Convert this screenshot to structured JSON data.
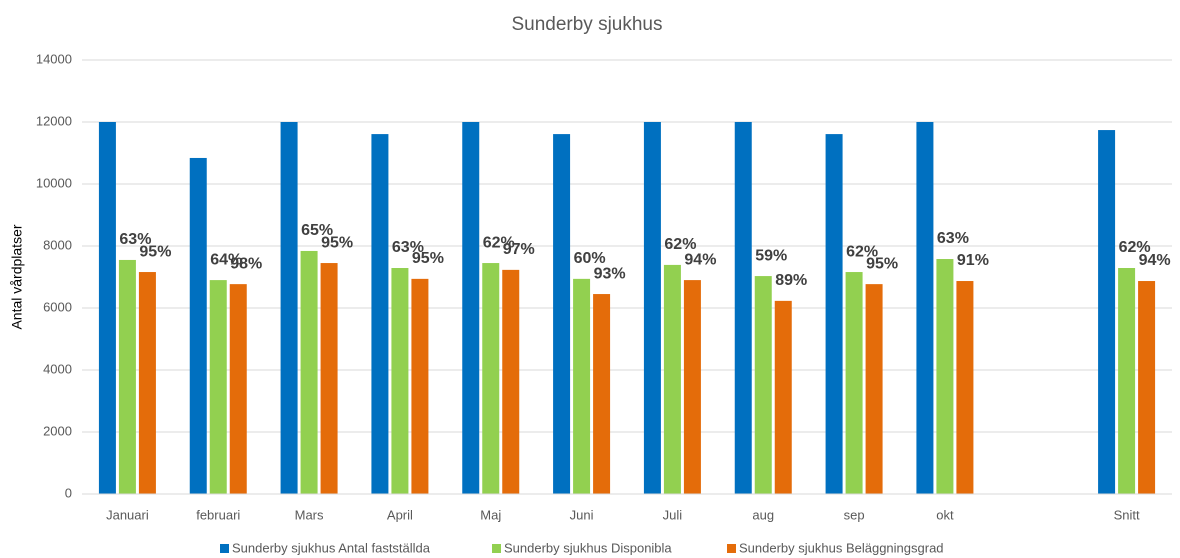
{
  "chart_data": {
    "type": "bar",
    "title": "Sunderby sjukhus",
    "y_label": "Antal vårdplatser",
    "categories": [
      "Januari",
      "februari",
      "Mars",
      "April",
      "Maj",
      "Juni",
      "Juli",
      "aug",
      "sep",
      "okt",
      null,
      "Snitt"
    ],
    "series": [
      {
        "name": "Sunderby sjukhus Antal fastställda",
        "color": "#0070c0",
        "values": [
          12000,
          10840,
          12000,
          11610,
          12000,
          11610,
          12000,
          12000,
          11610,
          12000,
          null,
          11740
        ]
      },
      {
        "name": "Sunderby sjukhus Disponibla",
        "color": "#92d050",
        "values": [
          7550,
          6900,
          7840,
          7290,
          7450,
          6940,
          7390,
          7030,
          7160,
          7580,
          null,
          7290
        ],
        "annotations": [
          "63%",
          "64%",
          "65%",
          "63%",
          "62%",
          "60%",
          "62%",
          "59%",
          "62%",
          "63%",
          null,
          "62%"
        ]
      },
      {
        "name": "Sunderby sjukhus Beläggningsgrad",
        "color": "#e46c0a",
        "values": [
          7160,
          6770,
          7450,
          6940,
          7230,
          6450,
          6900,
          6230,
          6770,
          6870,
          null,
          6870
        ],
        "annotations": [
          "95%",
          "98%",
          "95%",
          "95%",
          "97%",
          "93%",
          "94%",
          "89%",
          "95%",
          "91%",
          null,
          "94%"
        ]
      }
    ],
    "ylim": [
      0,
      14000
    ],
    "yticks": [
      0,
      2000,
      4000,
      6000,
      8000,
      10000,
      12000,
      14000
    ],
    "grid": true,
    "legend": "bottom"
  }
}
